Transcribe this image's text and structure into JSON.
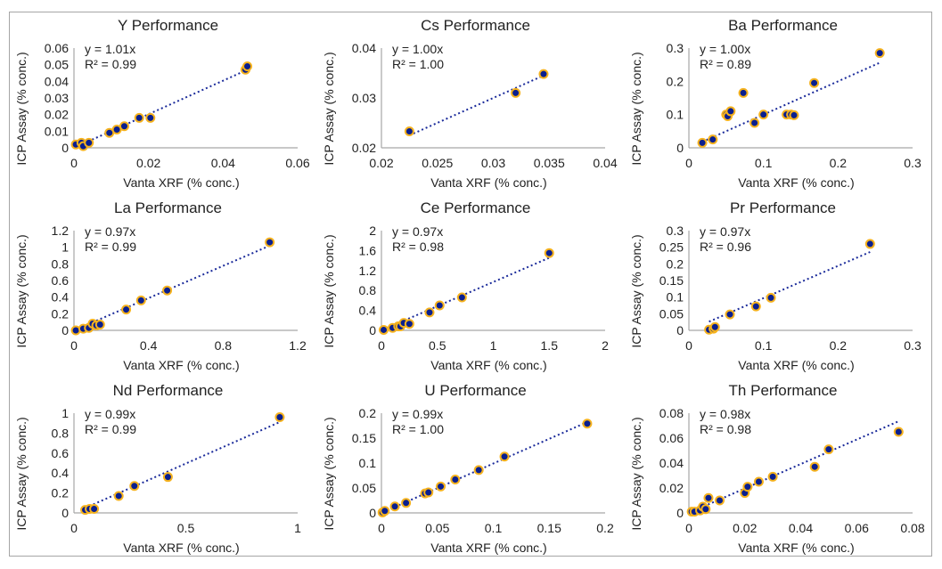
{
  "colors": {
    "marker_fill": "#0a1f8f",
    "marker_edge": "#f5b21e",
    "trendline": "#1a2a9a",
    "axis": "#a6a6a6"
  },
  "chart_data": [
    {
      "type": "scatter",
      "title": "Y Performance",
      "xlabel": "Vanta XRF (% conc.)",
      "ylabel": "ICP Assay (% conc.)",
      "xticks": [
        "0",
        "0.02",
        "0.04",
        "0.06"
      ],
      "yticks": [
        "0",
        "0.01",
        "0.02",
        "0.03",
        "0.04",
        "0.05",
        "0.06"
      ],
      "xlim": [
        0,
        0.06
      ],
      "ylim": [
        0,
        0.06
      ],
      "equation": "y = 1.01x",
      "r2": "R² = 0.99",
      "slope": 1.01,
      "x": [
        0.0005,
        0.002,
        0.0025,
        0.004,
        0.0095,
        0.0115,
        0.0135,
        0.0175,
        0.0205,
        0.046,
        0.0465
      ],
      "y": [
        0.002,
        0.003,
        0.001,
        0.003,
        0.009,
        0.011,
        0.013,
        0.018,
        0.018,
        0.047,
        0.049
      ]
    },
    {
      "type": "scatter",
      "title": "Cs Performance",
      "xlabel": "Vanta XRF (% conc.)",
      "ylabel": "ICP Assay (% conc.)",
      "xticks": [
        "0.02",
        "0.025",
        "0.03",
        "0.035",
        "0.04"
      ],
      "yticks": [
        "0.02",
        "0.03",
        "0.04"
      ],
      "xlim": [
        0.02,
        0.04
      ],
      "ylim": [
        0.02,
        0.04
      ],
      "equation": "y = 1.00x",
      "r2": "R² = 1.00",
      "slope": 1.0,
      "x": [
        0.0225,
        0.032,
        0.0345
      ],
      "y": [
        0.0233,
        0.031,
        0.0348
      ]
    },
    {
      "type": "scatter",
      "title": "Ba Performance",
      "xlabel": "Vanta XRF (% conc.)",
      "ylabel": "ICP Assay (% conc.)",
      "xticks": [
        "0",
        "0.1",
        "0.2",
        "0.3"
      ],
      "yticks": [
        "0",
        "0.1",
        "0.2",
        "0.3"
      ],
      "xlim": [
        0,
        0.3
      ],
      "ylim": [
        0,
        0.3
      ],
      "equation": "y = 1.00x",
      "r2": "R² = 0.89",
      "slope": 1.0,
      "x": [
        0.018,
        0.032,
        0.05,
        0.052,
        0.056,
        0.073,
        0.088,
        0.1,
        0.131,
        0.137,
        0.141,
        0.168,
        0.256
      ],
      "y": [
        0.015,
        0.025,
        0.1,
        0.095,
        0.11,
        0.165,
        0.075,
        0.1,
        0.1,
        0.1,
        0.098,
        0.195,
        0.285
      ]
    },
    {
      "type": "scatter",
      "title": "La Performance",
      "xlabel": "Vanta XRF (% conc.)",
      "ylabel": "ICP Assay (% conc.)",
      "xticks": [
        "0",
        "0.4",
        "0.8",
        "1.2"
      ],
      "yticks": [
        "0",
        "0.2",
        "0.4",
        "0.6",
        "0.8",
        "1",
        "1.2"
      ],
      "xlim": [
        0,
        1.2
      ],
      "ylim": [
        0,
        1.2
      ],
      "equation": "y = 0.97x",
      "r2": "R² = 0.99",
      "slope": 0.97,
      "x": [
        0.01,
        0.05,
        0.08,
        0.1,
        0.12,
        0.14,
        0.28,
        0.36,
        0.5,
        1.05
      ],
      "y": [
        0.0,
        0.02,
        0.03,
        0.08,
        0.06,
        0.07,
        0.25,
        0.36,
        0.48,
        1.06
      ]
    },
    {
      "type": "scatter",
      "title": "Ce Performance",
      "xlabel": "Vanta XRF (% conc.)",
      "ylabel": "ICP Assay (% conc.)",
      "xticks": [
        "0",
        "0.5",
        "1",
        "1.5",
        "2"
      ],
      "yticks": [
        "0",
        "0.4",
        "0.8",
        "1.2",
        "1.6",
        "2"
      ],
      "xlim": [
        0,
        2
      ],
      "ylim": [
        0,
        2
      ],
      "equation": "y = 0.97x",
      "r2": "R² = 0.98",
      "slope": 0.97,
      "x": [
        0.02,
        0.1,
        0.15,
        0.17,
        0.2,
        0.25,
        0.43,
        0.52,
        0.72,
        1.5
      ],
      "y": [
        0.01,
        0.05,
        0.08,
        0.08,
        0.15,
        0.13,
        0.36,
        0.5,
        0.66,
        1.55
      ]
    },
    {
      "type": "scatter",
      "title": "Pr Performance",
      "xlabel": "Vanta XRF (% conc.)",
      "ylabel": "ICP Assay (% conc.)",
      "xticks": [
        "0",
        "0.1",
        "0.2",
        "0.3"
      ],
      "yticks": [
        "0",
        "0.05",
        "0.1",
        "0.15",
        "0.2",
        "0.25",
        "0.3"
      ],
      "xlim": [
        0,
        0.3
      ],
      "ylim": [
        0,
        0.3
      ],
      "equation": "y = 0.97x",
      "r2": "R² = 0.96",
      "slope": 0.97,
      "x": [
        0.027,
        0.033,
        0.035,
        0.055,
        0.09,
        0.11,
        0.243
      ],
      "y": [
        0.002,
        0.005,
        0.01,
        0.048,
        0.072,
        0.098,
        0.26
      ]
    },
    {
      "type": "scatter",
      "title": "Nd Performance",
      "xlabel": "Vanta XRF (% conc.)",
      "ylabel": "ICP Assay (% conc.)",
      "xticks": [
        "0",
        "0.5",
        "1"
      ],
      "yticks": [
        "0",
        "0.2",
        "0.4",
        "0.6",
        "0.8",
        "1"
      ],
      "xlim": [
        0,
        1
      ],
      "ylim": [
        0,
        1
      ],
      "equation": "y = 0.99x",
      "r2": "R² = 0.99",
      "slope": 0.99,
      "x": [
        0.05,
        0.07,
        0.09,
        0.2,
        0.27,
        0.42,
        0.92
      ],
      "y": [
        0.03,
        0.04,
        0.04,
        0.17,
        0.27,
        0.36,
        0.96
      ]
    },
    {
      "type": "scatter",
      "title": "U Performance",
      "xlabel": "Vanta XRF (% conc.)",
      "ylabel": "ICP Assay (% conc.)",
      "xticks": [
        "0",
        "0.05",
        "0.1",
        "0.15",
        "0.2"
      ],
      "yticks": [
        "0",
        "0.05",
        "0.1",
        "0.15",
        "0.2"
      ],
      "xlim": [
        0,
        0.2
      ],
      "ylim": [
        0,
        0.2
      ],
      "equation": "y = 0.99x",
      "r2": "R² = 1.00",
      "slope": 0.99,
      "x": [
        0.001,
        0.003,
        0.012,
        0.022,
        0.039,
        0.042,
        0.053,
        0.066,
        0.087,
        0.11,
        0.184
      ],
      "y": [
        0.001,
        0.004,
        0.013,
        0.02,
        0.039,
        0.041,
        0.053,
        0.067,
        0.086,
        0.113,
        0.179
      ]
    },
    {
      "type": "scatter",
      "title": "Th Performance",
      "xlabel": "Vanta XRF (% conc.)",
      "ylabel": "ICP Assay (% conc.)",
      "xticks": [
        "0",
        "0.02",
        "0.04",
        "0.06",
        "0.08"
      ],
      "yticks": [
        "0",
        "0.02",
        "0.04",
        "0.06",
        "0.08"
      ],
      "xlim": [
        0,
        0.08
      ],
      "ylim": [
        0,
        0.08
      ],
      "equation": "y = 0.98x",
      "r2": "R² = 0.98",
      "slope": 0.98,
      "x": [
        0.001,
        0.002,
        0.004,
        0.005,
        0.006,
        0.007,
        0.011,
        0.02,
        0.021,
        0.025,
        0.03,
        0.045,
        0.05,
        0.075
      ],
      "y": [
        0.001,
        0.001,
        0.002,
        0.005,
        0.003,
        0.012,
        0.01,
        0.016,
        0.021,
        0.025,
        0.029,
        0.037,
        0.051,
        0.065
      ]
    }
  ]
}
